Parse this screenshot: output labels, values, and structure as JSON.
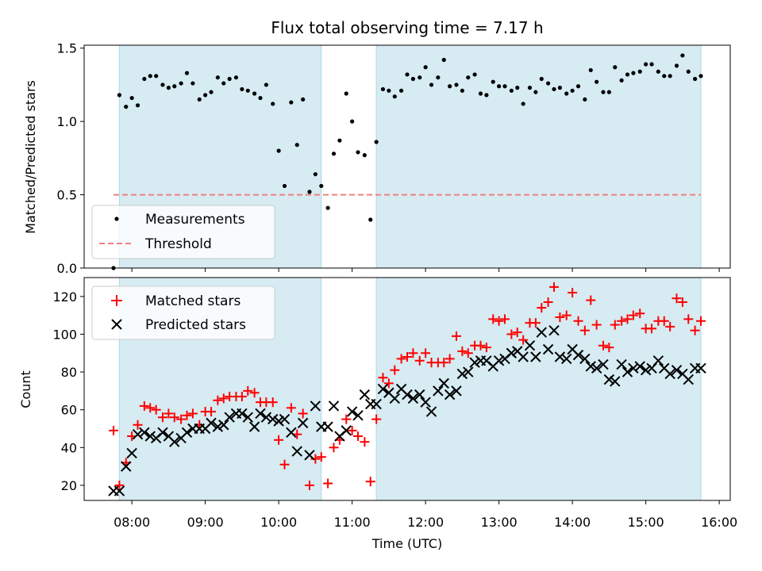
{
  "chart_data": [
    {
      "type": "scatter",
      "title": "Flux total observing time = 7.17 h",
      "xlabel": "",
      "ylabel": "Matched/Predicted stars",
      "xlim": [
        7.35,
        16.15
      ],
      "ylim": [
        0,
        1.52
      ],
      "x_ticks": [
        8,
        9,
        10,
        11,
        12,
        13,
        14,
        15,
        16
      ],
      "y_ticks": [
        0.0,
        0.5,
        1.0,
        1.5
      ],
      "y_tick_labels": [
        "0.0",
        "0.5",
        "1.0",
        "1.5"
      ],
      "shaded_regions": [
        [
          7.83,
          10.58
        ],
        [
          11.33,
          15.75
        ]
      ],
      "shade_color": "#add8e6",
      "legend": {
        "position": "lower-left",
        "entries": [
          "Measurements",
          "Threshold"
        ]
      },
      "threshold": {
        "name": "Threshold",
        "value": 0.5,
        "x_range": [
          7.75,
          15.75
        ],
        "color": "#f08080"
      },
      "series": [
        {
          "name": "Measurements",
          "color": "#000000",
          "x": [
            7.75,
            7.83,
            7.92,
            8.0,
            8.08,
            8.17,
            8.25,
            8.33,
            8.42,
            8.5,
            8.58,
            8.67,
            8.75,
            8.83,
            8.92,
            9.0,
            9.08,
            9.17,
            9.25,
            9.33,
            9.42,
            9.5,
            9.58,
            9.67,
            9.75,
            9.83,
            9.92,
            10.0,
            10.08,
            10.17,
            10.25,
            10.33,
            10.42,
            10.5,
            10.58,
            10.67,
            10.75,
            10.83,
            10.92,
            11.0,
            11.08,
            11.17,
            11.25,
            11.33,
            11.42,
            11.5,
            11.58,
            11.67,
            11.75,
            11.83,
            11.92,
            12.0,
            12.08,
            12.17,
            12.25,
            12.33,
            12.42,
            12.5,
            12.58,
            12.67,
            12.75,
            12.83,
            12.92,
            13.0,
            13.08,
            13.17,
            13.25,
            13.33,
            13.42,
            13.5,
            13.58,
            13.67,
            13.75,
            13.83,
            13.92,
            14.0,
            14.08,
            14.17,
            14.25,
            14.33,
            14.42,
            14.5,
            14.58,
            14.67,
            14.75,
            14.83,
            14.92,
            15.0,
            15.08,
            15.17,
            15.25,
            15.33,
            15.42,
            15.5,
            15.58,
            15.67,
            15.75
          ],
          "y": [
            0.0,
            1.18,
            1.1,
            1.16,
            1.11,
            1.29,
            1.31,
            1.31,
            1.25,
            1.23,
            1.24,
            1.26,
            1.33,
            1.26,
            1.15,
            1.18,
            1.2,
            1.3,
            1.26,
            1.29,
            1.3,
            1.22,
            1.21,
            1.19,
            1.16,
            1.25,
            1.12,
            0.8,
            0.56,
            1.13,
            0.84,
            1.15,
            0.52,
            0.64,
            0.56,
            0.41,
            0.78,
            0.87,
            1.19,
            1.0,
            0.79,
            0.77,
            0.33,
            0.86,
            1.22,
            1.21,
            1.17,
            1.21,
            1.32,
            1.29,
            1.3,
            1.37,
            1.25,
            1.3,
            1.42,
            1.24,
            1.25,
            1.21,
            1.3,
            1.32,
            1.19,
            1.18,
            1.27,
            1.24,
            1.24,
            1.21,
            1.23,
            1.12,
            1.23,
            1.2,
            1.29,
            1.26,
            1.22,
            1.23,
            1.19,
            1.21,
            1.24,
            1.15,
            1.35,
            1.27,
            1.2,
            1.2,
            1.37,
            1.28,
            1.32,
            1.33,
            1.34,
            1.39,
            1.39,
            1.34,
            1.31,
            1.31,
            1.38,
            1.45,
            1.34,
            1.29,
            1.31
          ]
        }
      ]
    },
    {
      "type": "scatter",
      "title": "",
      "xlabel": "Time (UTC)",
      "ylabel": "Count",
      "xlim": [
        7.35,
        16.15
      ],
      "ylim": [
        12,
        130
      ],
      "x_ticks": [
        8,
        9,
        10,
        11,
        12,
        13,
        14,
        15,
        16
      ],
      "x_tick_labels": [
        "08:00",
        "09:00",
        "10:00",
        "11:00",
        "12:00",
        "13:00",
        "14:00",
        "15:00",
        "16:00"
      ],
      "y_ticks": [
        20,
        40,
        60,
        80,
        100,
        120
      ],
      "y_tick_labels": [
        "20",
        "40",
        "60",
        "80",
        "100",
        "120"
      ],
      "shaded_regions": [
        [
          7.83,
          10.58
        ],
        [
          11.33,
          15.75
        ]
      ],
      "shade_color": "#add8e6",
      "legend": {
        "position": "top-left",
        "entries": [
          "Matched stars",
          "Predicted stars"
        ]
      },
      "series": [
        {
          "name": "Matched stars",
          "marker": "plus",
          "color": "#ff0000",
          "x": [
            7.75,
            7.83,
            7.92,
            8.0,
            8.08,
            8.17,
            8.25,
            8.33,
            8.42,
            8.5,
            8.58,
            8.67,
            8.75,
            8.83,
            8.92,
            9.0,
            9.08,
            9.17,
            9.25,
            9.33,
            9.42,
            9.5,
            9.58,
            9.67,
            9.75,
            9.83,
            9.92,
            10.0,
            10.08,
            10.17,
            10.25,
            10.33,
            10.42,
            10.5,
            10.58,
            10.67,
            10.75,
            10.83,
            10.92,
            11.0,
            11.08,
            11.17,
            11.25,
            11.33,
            11.42,
            11.5,
            11.58,
            11.67,
            11.75,
            11.83,
            11.92,
            12.0,
            12.08,
            12.17,
            12.25,
            12.33,
            12.42,
            12.5,
            12.58,
            12.67,
            12.75,
            12.83,
            12.92,
            13.0,
            13.08,
            13.17,
            13.25,
            13.33,
            13.42,
            13.5,
            13.58,
            13.67,
            13.75,
            13.83,
            13.92,
            14.0,
            14.08,
            14.17,
            14.25,
            14.33,
            14.42,
            14.5,
            14.58,
            14.67,
            14.75,
            14.83,
            14.92,
            15.0,
            15.08,
            15.17,
            15.25,
            15.33,
            15.42,
            15.5,
            15.58,
            15.67,
            15.75
          ],
          "y": [
            49,
            20,
            32,
            46,
            52,
            62,
            61,
            60,
            56,
            58,
            56,
            55,
            57,
            58,
            52,
            59,
            59,
            65,
            66,
            67,
            67,
            67,
            70,
            69,
            64,
            64,
            64,
            44,
            31,
            61,
            47,
            58,
            20,
            34,
            35,
            21,
            40,
            44,
            55,
            49,
            46,
            43,
            22,
            55,
            77,
            74,
            81,
            87,
            88,
            90,
            86,
            90,
            85,
            85,
            85,
            87,
            99,
            91,
            90,
            94,
            94,
            93,
            108,
            107,
            108,
            100,
            101,
            97,
            106,
            106,
            114,
            117,
            125,
            109,
            110,
            122,
            107,
            102,
            118,
            105,
            94,
            93,
            105,
            107,
            108,
            110,
            111,
            103,
            103,
            107,
            107,
            104,
            119,
            117,
            108,
            102,
            107
          ]
        },
        {
          "name": "Predicted stars",
          "marker": "x",
          "color": "#000000",
          "x": [
            7.75,
            7.83,
            7.92,
            8.0,
            8.08,
            8.17,
            8.25,
            8.33,
            8.42,
            8.5,
            8.58,
            8.67,
            8.75,
            8.83,
            8.92,
            9.0,
            9.08,
            9.17,
            9.25,
            9.33,
            9.42,
            9.5,
            9.58,
            9.67,
            9.75,
            9.83,
            9.92,
            10.0,
            10.08,
            10.17,
            10.25,
            10.33,
            10.42,
            10.5,
            10.58,
            10.67,
            10.75,
            10.83,
            10.92,
            11.0,
            11.08,
            11.17,
            11.25,
            11.33,
            11.42,
            11.5,
            11.58,
            11.67,
            11.75,
            11.83,
            11.92,
            12.0,
            12.08,
            12.17,
            12.25,
            12.33,
            12.42,
            12.5,
            12.58,
            12.67,
            12.75,
            12.83,
            12.92,
            13.0,
            13.08,
            13.17,
            13.25,
            13.33,
            13.42,
            13.5,
            13.58,
            13.67,
            13.75,
            13.83,
            13.92,
            14.0,
            14.08,
            14.17,
            14.25,
            14.33,
            14.42,
            14.5,
            14.58,
            14.67,
            14.75,
            14.83,
            14.92,
            15.0,
            15.08,
            15.17,
            15.25,
            15.33,
            15.42,
            15.5,
            15.58,
            15.67,
            15.75
          ],
          "y": [
            17,
            17,
            30,
            37,
            47,
            48,
            46,
            45,
            48,
            46,
            43,
            45,
            48,
            50,
            50,
            50,
            53,
            51,
            52,
            56,
            58,
            58,
            56,
            51,
            58,
            56,
            55,
            54,
            55,
            48,
            38,
            53,
            36,
            62,
            51,
            51,
            62,
            46,
            49,
            59,
            57,
            68,
            63,
            63,
            71,
            69,
            66,
            71,
            68,
            66,
            68,
            64,
            59,
            70,
            74,
            68,
            70,
            79,
            80,
            85,
            86,
            86,
            83,
            86,
            87,
            90,
            91,
            88,
            94,
            88,
            101,
            92,
            102,
            88,
            87,
            92,
            89,
            87,
            83,
            82,
            84,
            76,
            75,
            84,
            80,
            82,
            83,
            81,
            82,
            86,
            82,
            79,
            81,
            79,
            76,
            82,
            82
          ]
        }
      ]
    }
  ]
}
